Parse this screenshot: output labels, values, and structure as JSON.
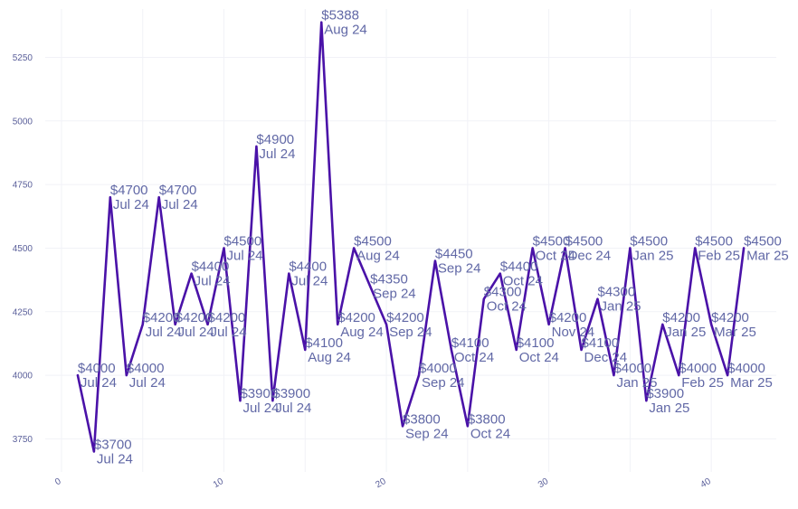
{
  "chart_data": {
    "type": "line",
    "title": "",
    "xlabel": "",
    "ylabel": "",
    "xlim": [
      -1,
      44
    ],
    "ylim": [
      3620,
      5440
    ],
    "grid": true,
    "legend": "none",
    "colors": {
      "line": "#4a12a8",
      "tick": "#5a5f9a",
      "label": "#6168a6",
      "grid": "#f1f2f7"
    },
    "x_ticks": [
      {
        "value": 0,
        "label": "0"
      },
      {
        "value": 10,
        "label": "10"
      },
      {
        "value": 20,
        "label": "20"
      },
      {
        "value": 30,
        "label": "30"
      },
      {
        "value": 40,
        "label": "40"
      }
    ],
    "y_ticks": [
      {
        "value": 3750,
        "label": "3750"
      },
      {
        "value": 4000,
        "label": "4000"
      },
      {
        "value": 4250,
        "label": "4250"
      },
      {
        "value": 4500,
        "label": "4500"
      },
      {
        "value": 4750,
        "label": "4750"
      },
      {
        "value": 5000,
        "label": "5000"
      },
      {
        "value": 5250,
        "label": "5250"
      }
    ],
    "series": [
      {
        "name": "price",
        "points": [
          {
            "x": 1,
            "y": 4000,
            "price": "$4000",
            "month": "Jul 24"
          },
          {
            "x": 2,
            "y": 3700,
            "price": "$3700",
            "month": "Jul 24"
          },
          {
            "x": 3,
            "y": 4700,
            "price": "$4700",
            "month": "Jul 24"
          },
          {
            "x": 4,
            "y": 4000,
            "price": "$4000",
            "month": "Jul 24"
          },
          {
            "x": 5,
            "y": 4200,
            "price": "$4200",
            "month": "Jul 24"
          },
          {
            "x": 6,
            "y": 4700,
            "price": "$4700",
            "month": "Jul 24"
          },
          {
            "x": 7,
            "y": 4200,
            "price": "$4200",
            "month": "Jul 24"
          },
          {
            "x": 8,
            "y": 4400,
            "price": "$4400",
            "month": "Jul 24"
          },
          {
            "x": 9,
            "y": 4200,
            "price": "$4200",
            "month": "Jul 24"
          },
          {
            "x": 10,
            "y": 4500,
            "price": "$4500",
            "month": "Jul 24"
          },
          {
            "x": 11,
            "y": 3900,
            "price": "$3900",
            "month": "Jul 24"
          },
          {
            "x": 12,
            "y": 4900,
            "price": "$4900",
            "month": "Jul 24"
          },
          {
            "x": 13,
            "y": 3900,
            "price": "$3900",
            "month": "Jul 24"
          },
          {
            "x": 14,
            "y": 4400,
            "price": "$4400",
            "month": "Jul 24"
          },
          {
            "x": 15,
            "y": 4100,
            "price": "$4100",
            "month": "Aug 24"
          },
          {
            "x": 16,
            "y": 5388,
            "price": "$5388",
            "month": "Aug 24"
          },
          {
            "x": 17,
            "y": 4200,
            "price": "$4200",
            "month": "Aug 24"
          },
          {
            "x": 18,
            "y": 4500,
            "price": "$4500",
            "month": "Aug 24"
          },
          {
            "x": 19,
            "y": 4350,
            "price": "$4350",
            "month": "Sep 24"
          },
          {
            "x": 20,
            "y": 4200,
            "price": "$4200",
            "month": "Sep 24"
          },
          {
            "x": 21,
            "y": 3800,
            "price": "$3800",
            "month": "Sep 24"
          },
          {
            "x": 22,
            "y": 4000,
            "price": "$4000",
            "month": "Sep 24"
          },
          {
            "x": 23,
            "y": 4450,
            "price": "$4450",
            "month": "Sep 24"
          },
          {
            "x": 24,
            "y": 4100,
            "price": "$4100",
            "month": "Oct 24"
          },
          {
            "x": 25,
            "y": 3800,
            "price": "$3800",
            "month": "Oct 24"
          },
          {
            "x": 26,
            "y": 4300,
            "price": "$4300",
            "month": "Oct 24"
          },
          {
            "x": 27,
            "y": 4400,
            "price": "$4400",
            "month": "Oct 24"
          },
          {
            "x": 28,
            "y": 4100,
            "price": "$4100",
            "month": "Oct 24"
          },
          {
            "x": 29,
            "y": 4500,
            "price": "$4500",
            "month": "Oct 24"
          },
          {
            "x": 30,
            "y": 4200,
            "price": "$4200",
            "month": "Nov 24"
          },
          {
            "x": 31,
            "y": 4500,
            "price": "$4500",
            "month": "Dec 24"
          },
          {
            "x": 32,
            "y": 4100,
            "price": "$4100",
            "month": "Dec 24"
          },
          {
            "x": 33,
            "y": 4300,
            "price": "$4300",
            "month": "Jan 25"
          },
          {
            "x": 34,
            "y": 4000,
            "price": "$4000",
            "month": "Jan 25"
          },
          {
            "x": 35,
            "y": 4500,
            "price": "$4500",
            "month": "Jan 25"
          },
          {
            "x": 36,
            "y": 3900,
            "price": "$3900",
            "month": "Jan 25"
          },
          {
            "x": 37,
            "y": 4200,
            "price": "$4200",
            "month": "Jan 25"
          },
          {
            "x": 38,
            "y": 4000,
            "price": "$4000",
            "month": "Feb 25"
          },
          {
            "x": 39,
            "y": 4500,
            "price": "$4500",
            "month": "Feb 25"
          },
          {
            "x": 40,
            "y": 4200,
            "price": "$4200",
            "month": "Mar 25"
          },
          {
            "x": 41,
            "y": 4000,
            "price": "$4000",
            "month": "Mar 25"
          },
          {
            "x": 42,
            "y": 4500,
            "price": "$4500",
            "month": "Mar 25"
          }
        ]
      }
    ]
  }
}
